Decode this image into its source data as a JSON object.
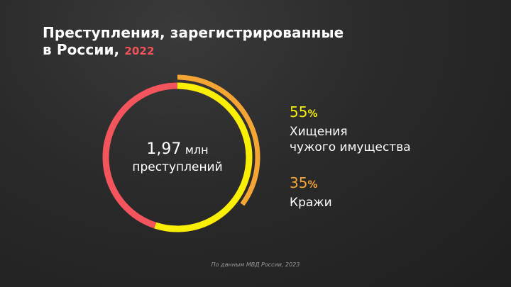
{
  "title": {
    "line1": "Преступления, зарегистрированные",
    "line2": "в России,",
    "year": "2022"
  },
  "center": {
    "value": "1,97",
    "unit": "млн",
    "caption": "преступлений"
  },
  "legend": [
    {
      "percent": "55",
      "sign": "%",
      "label_line1": "Хищения",
      "label_line2": "чужого имущества"
    },
    {
      "percent": "35",
      "sign": "%",
      "label_line1": "Кражи",
      "label_line2": ""
    }
  ],
  "source": "По данным МВД России, 2023",
  "colors": {
    "total": "#f4545c",
    "theft_property": "#f8f000",
    "theft": "#f5a534"
  },
  "chart_data": {
    "type": "pie",
    "title": "Преступления, зарегистрированные в России, 2022",
    "total": "1,97 млн преступлений",
    "series": [
      {
        "name": "Хищения чужого имущества",
        "value": 55
      },
      {
        "name": "Кражи",
        "value": 35
      }
    ],
    "unit": "%"
  }
}
